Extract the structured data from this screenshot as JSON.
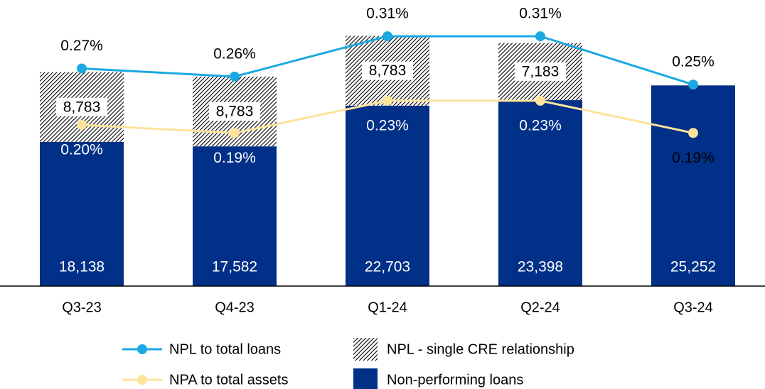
{
  "chart_data": {
    "type": "bar",
    "categories": [
      "Q3-23",
      "Q4-23",
      "Q1-24",
      "Q2-24",
      "Q3-24"
    ],
    "ylim": [
      0,
      36000
    ],
    "y2lim": [
      0,
      0.355
    ],
    "series": [
      {
        "name": "Non-performing loans",
        "type": "bar",
        "color": "#003087",
        "values": [
          18138,
          17582,
          22703,
          23398,
          25252
        ],
        "value_labels": [
          "18,138",
          "17,582",
          "22,703",
          "23,398",
          "25,252"
        ]
      },
      {
        "name": "NPL - single CRE relationship",
        "type": "bar",
        "color": "#000000",
        "pattern": "hatch",
        "values": [
          8783,
          8783,
          8783,
          7183,
          null
        ],
        "value_labels": [
          "8,783",
          "8,783",
          "8,783",
          "7,183",
          null
        ]
      },
      {
        "name": "NPL to total loans",
        "type": "line",
        "axis": "y2",
        "color": "#1ba9e1",
        "values": [
          0.27,
          0.26,
          0.31,
          0.31,
          0.25
        ],
        "value_labels": [
          "0.27%",
          "0.26%",
          "0.31%",
          "0.31%",
          "0.25%"
        ]
      },
      {
        "name": "NPA to total assets",
        "type": "line",
        "axis": "y2",
        "color": "#fde49c",
        "values": [
          0.2,
          0.19,
          0.23,
          0.23,
          0.19
        ],
        "value_labels": [
          "0.20%",
          "0.19%",
          "0.23%",
          "0.23%",
          "0.19%"
        ]
      }
    ]
  }
}
